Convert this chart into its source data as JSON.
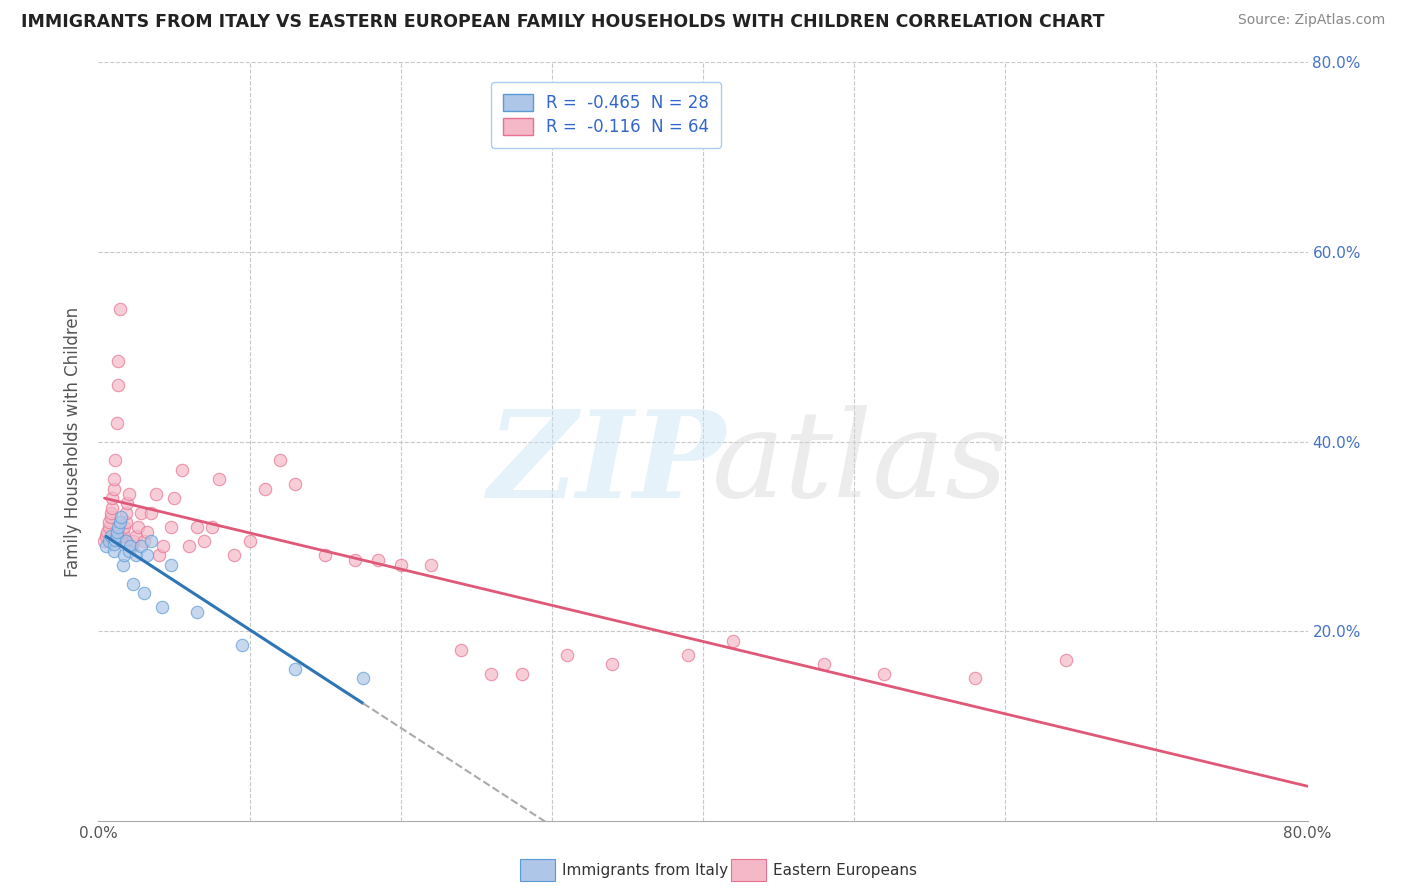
{
  "title": "IMMIGRANTS FROM ITALY VS EASTERN EUROPEAN FAMILY HOUSEHOLDS WITH CHILDREN CORRELATION CHART",
  "source": "Source: ZipAtlas.com",
  "ylabel": "Family Households with Children",
  "x_label_italy": "Immigrants from Italy",
  "x_label_eastern": "Eastern Europeans",
  "legend_italy": "R =  -0.465  N = 28",
  "legend_eastern": "R =  -0.116  N = 64",
  "xlim": [
    0.0,
    0.8
  ],
  "ylim": [
    0.0,
    0.8
  ],
  "xtick_left": 0.0,
  "xtick_right": 0.8,
  "yticks": [
    0.2,
    0.4,
    0.6,
    0.8
  ],
  "yticklabels": [
    "20.0%",
    "40.0%",
    "60.0%",
    "80.0%"
  ],
  "color_italy_fill": "#aec6e8",
  "color_italy_edge": "#5b9bd5",
  "color_italy_line": "#2e75b6",
  "color_eastern_fill": "#f4b8c8",
  "color_eastern_edge": "#e87090",
  "color_eastern_line": "#e05878",
  "background_color": "#ffffff",
  "grid_color": "#c8c8c8",
  "italy_x": [
    0.005,
    0.007,
    0.008,
    0.01,
    0.01,
    0.011,
    0.012,
    0.012,
    0.013,
    0.014,
    0.015,
    0.016,
    0.017,
    0.018,
    0.02,
    0.021,
    0.023,
    0.025,
    0.028,
    0.03,
    0.032,
    0.035,
    0.042,
    0.048,
    0.065,
    0.095,
    0.13,
    0.175
  ],
  "italy_y": [
    0.29,
    0.295,
    0.3,
    0.285,
    0.292,
    0.296,
    0.3,
    0.305,
    0.31,
    0.315,
    0.32,
    0.27,
    0.28,
    0.295,
    0.285,
    0.29,
    0.25,
    0.28,
    0.29,
    0.24,
    0.28,
    0.295,
    0.225,
    0.27,
    0.22,
    0.185,
    0.16,
    0.15
  ],
  "eastern_x": [
    0.004,
    0.005,
    0.006,
    0.007,
    0.007,
    0.008,
    0.008,
    0.009,
    0.009,
    0.01,
    0.01,
    0.011,
    0.012,
    0.013,
    0.013,
    0.014,
    0.015,
    0.015,
    0.016,
    0.017,
    0.018,
    0.018,
    0.019,
    0.02,
    0.022,
    0.023,
    0.025,
    0.026,
    0.028,
    0.03,
    0.032,
    0.035,
    0.038,
    0.04,
    0.043,
    0.048,
    0.05,
    0.055,
    0.06,
    0.065,
    0.07,
    0.075,
    0.08,
    0.09,
    0.1,
    0.11,
    0.12,
    0.13,
    0.15,
    0.17,
    0.185,
    0.2,
    0.22,
    0.24,
    0.26,
    0.28,
    0.31,
    0.34,
    0.39,
    0.42,
    0.48,
    0.52,
    0.58,
    0.64
  ],
  "eastern_y": [
    0.295,
    0.3,
    0.305,
    0.31,
    0.315,
    0.32,
    0.325,
    0.33,
    0.34,
    0.35,
    0.36,
    0.38,
    0.42,
    0.46,
    0.485,
    0.54,
    0.295,
    0.3,
    0.305,
    0.31,
    0.315,
    0.325,
    0.335,
    0.345,
    0.29,
    0.295,
    0.3,
    0.31,
    0.325,
    0.295,
    0.305,
    0.325,
    0.345,
    0.28,
    0.29,
    0.31,
    0.34,
    0.37,
    0.29,
    0.31,
    0.295,
    0.31,
    0.36,
    0.28,
    0.295,
    0.35,
    0.38,
    0.355,
    0.28,
    0.275,
    0.275,
    0.27,
    0.27,
    0.18,
    0.155,
    0.155,
    0.175,
    0.165,
    0.175,
    0.19,
    0.165,
    0.155,
    0.15,
    0.17
  ]
}
